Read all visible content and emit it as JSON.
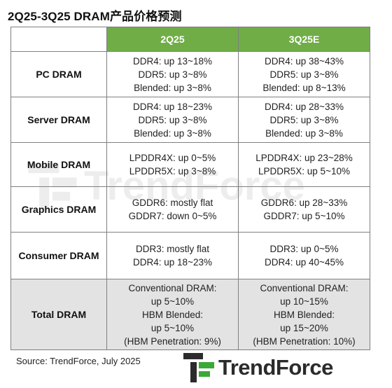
{
  "title": "2Q25-3Q25 DRAM产品价格预测",
  "table": {
    "columns": [
      "",
      "2Q25",
      "3Q25E"
    ],
    "rows": [
      {
        "label": "PC DRAM",
        "q2": [
          "DDR4: up 13~18%",
          "DDR5: up 3~8%",
          "Blended: up 3~8%"
        ],
        "q3": [
          "DDR4: up 38~43%",
          "DDR5: up 3~8%",
          "Blended: up 8~13%"
        ]
      },
      {
        "label": "Server DRAM",
        "q2": [
          "DDR4: up 18~23%",
          "DDR5: up 3~8%",
          "Blended: up 3~8%"
        ],
        "q3": [
          "DDR4: up 28~33%",
          "DDR5: up 3~8%",
          "Blended: up 3~8%"
        ]
      },
      {
        "label": "Mobile DRAM",
        "q2": [
          "LPDDR4X: up 0~5%",
          "LPDDR5X: up 3~8%"
        ],
        "q3": [
          "LPDDR4X: up 23~28%",
          "LPDDR5X: up 5~10%"
        ]
      },
      {
        "label": "Graphics DRAM",
        "q2": [
          "GDDR6: mostly flat",
          "GDDR7: down 0~5%"
        ],
        "q3": [
          "GDDR6: up 28~33%",
          "GDDR7: up 5~10%"
        ]
      },
      {
        "label": "Consumer DRAM",
        "q2": [
          "DDR3: mostly flat",
          "DDR4: up 18~23%"
        ],
        "q3": [
          "DDR3: up 0~5%",
          "DDR4: up 40~45%"
        ]
      },
      {
        "label": "Total DRAM",
        "q2": [
          "Conventional DRAM:",
          "up 5~10%",
          "HBM Blended:",
          "up 5~10%",
          "(HBM Penetration: 9%)"
        ],
        "q3": [
          "Conventional DRAM:",
          "up 10~15%",
          "HBM Blended:",
          "up 15~20%",
          "(HBM Penetration: 10%)"
        ]
      }
    ]
  },
  "source": "Source: TrendForce, July 2025",
  "logo": {
    "text": "TrendForce",
    "icon": "trendforce-logo-icon"
  },
  "watermark": {
    "text": "TrendForce"
  },
  "colors": {
    "header_bg": "#70ad47",
    "total_row_bg": "#e3e3e3",
    "border": "#7f7f7f"
  }
}
